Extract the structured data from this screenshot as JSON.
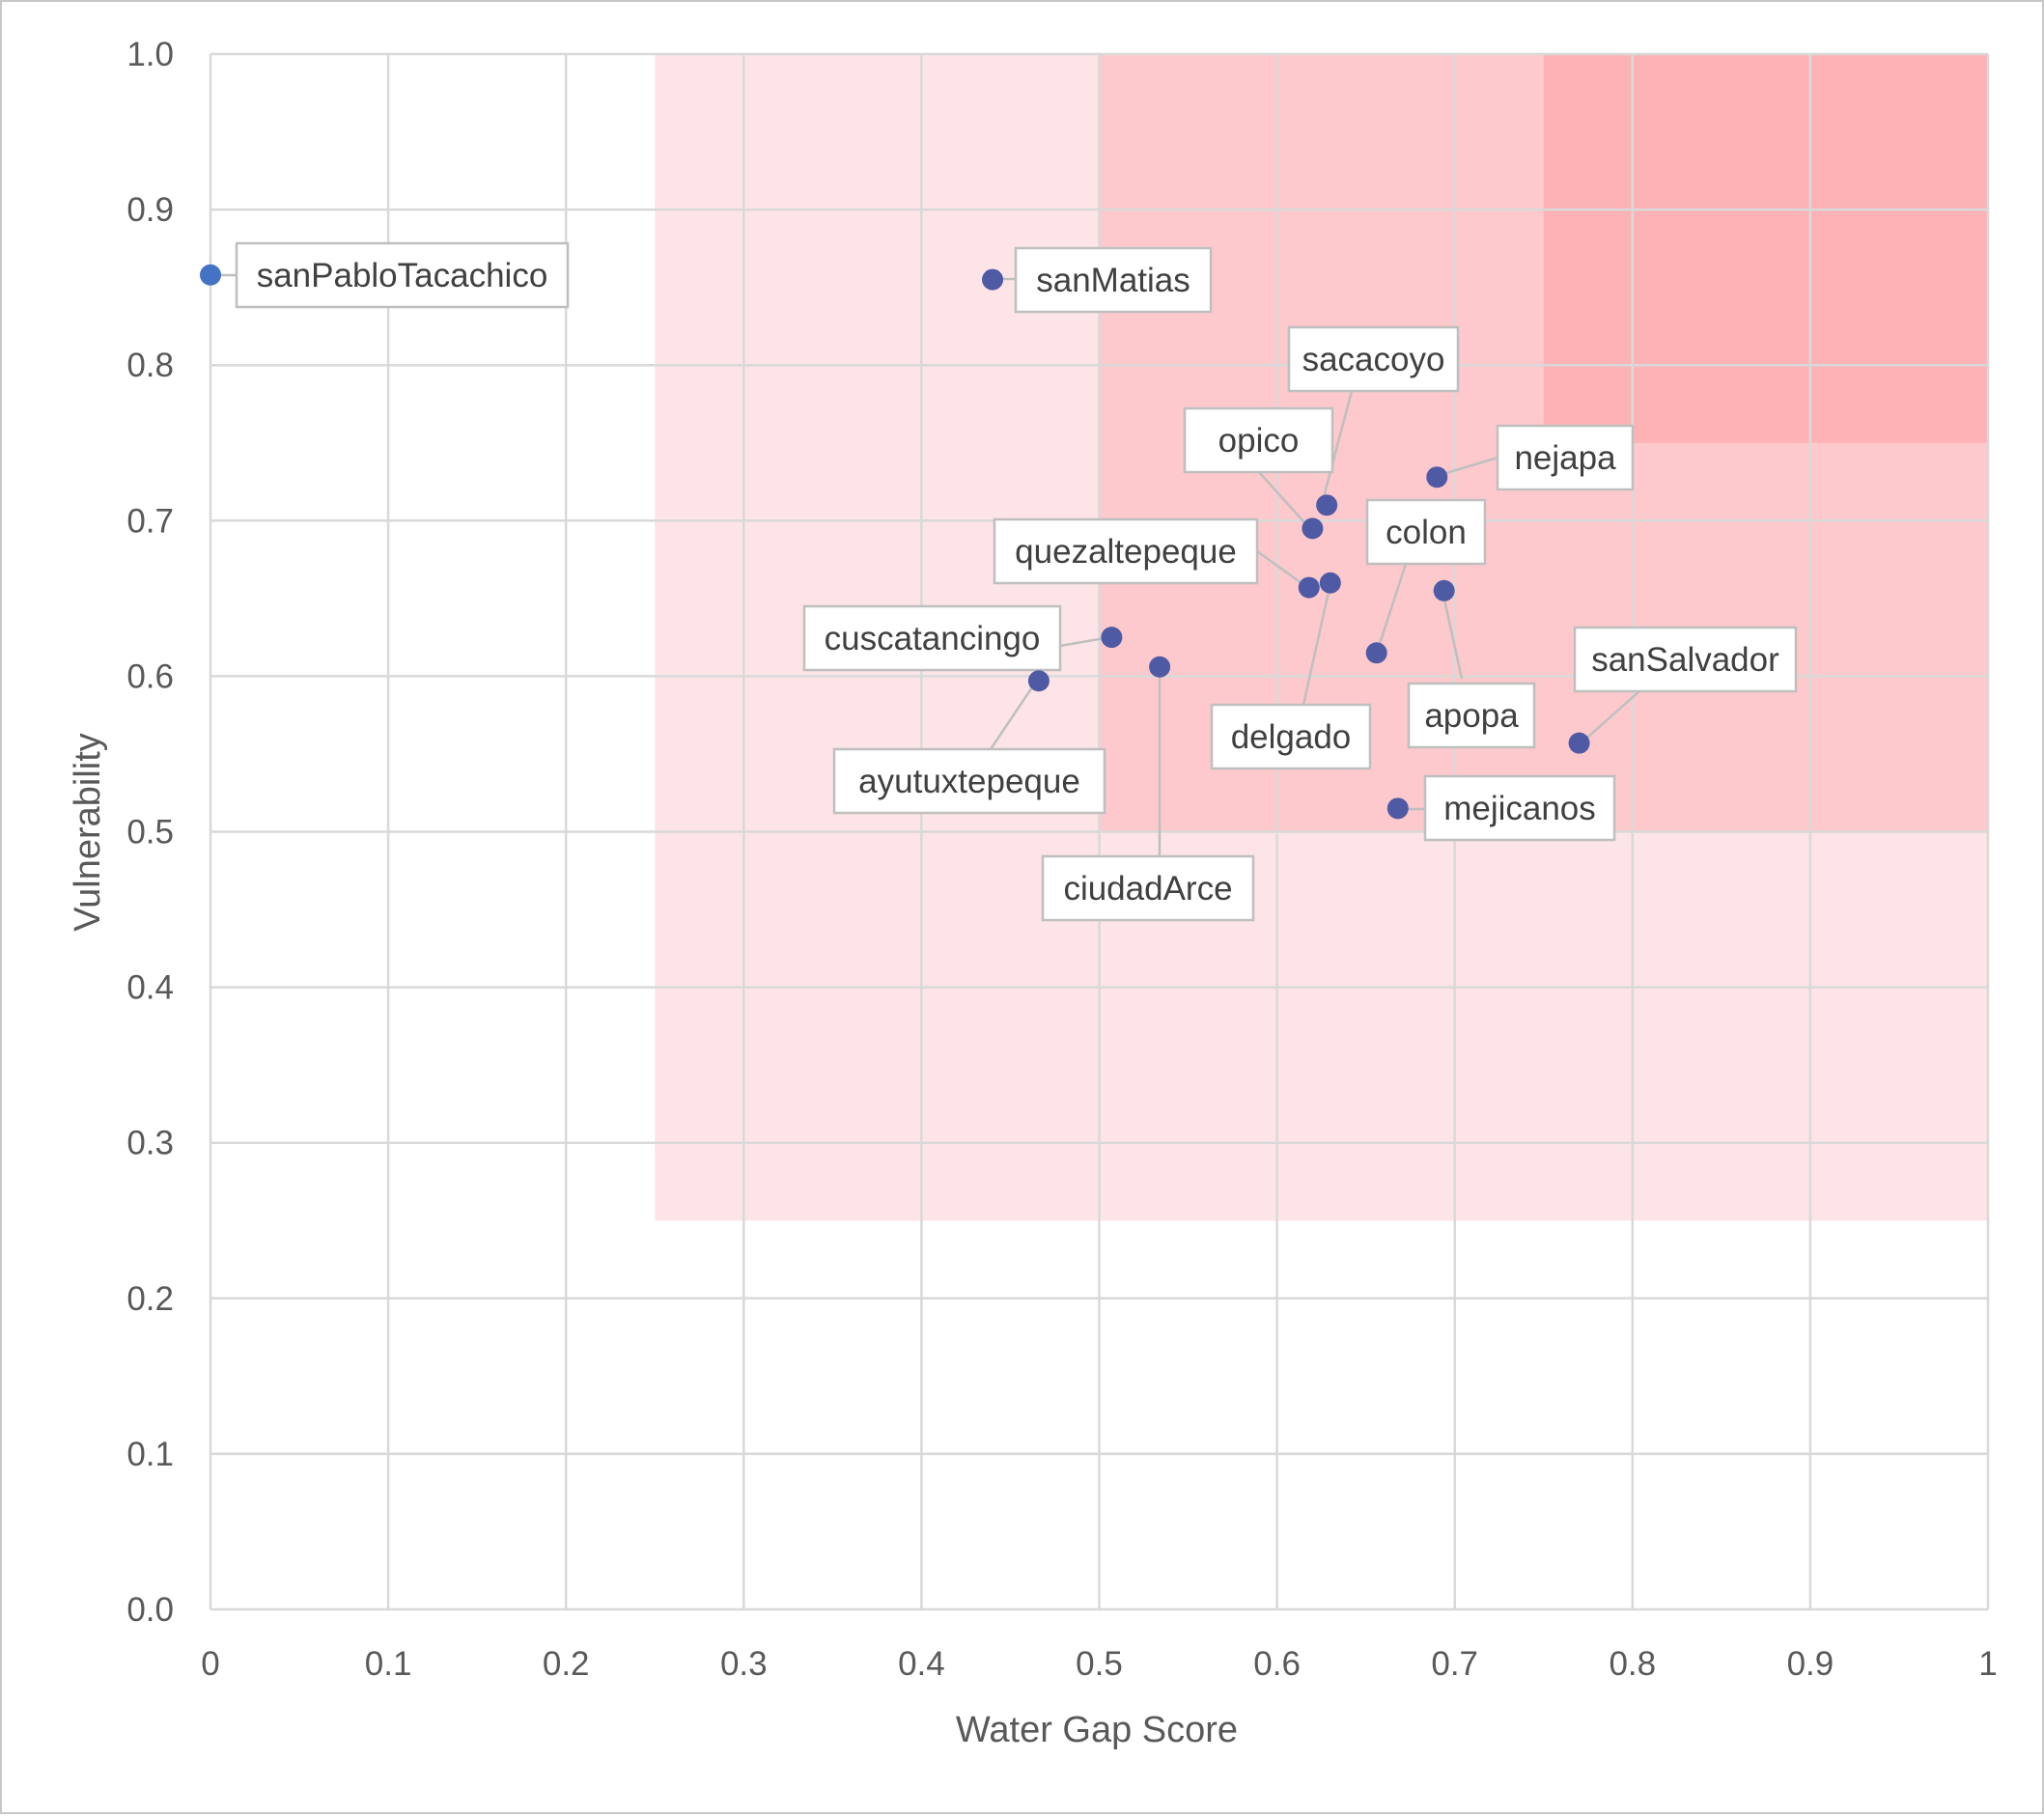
{
  "chart_data": {
    "type": "scatter",
    "xlabel": "Water Gap Score",
    "ylabel": "Vulnerability",
    "xlim": [
      0,
      1
    ],
    "ylim": [
      0,
      1
    ],
    "x_ticks": [
      "0",
      "0.1",
      "0.2",
      "0.3",
      "0.4",
      "0.5",
      "0.6",
      "0.7",
      "0.8",
      "0.9",
      "1"
    ],
    "y_ticks": [
      "0.0",
      "0.1",
      "0.2",
      "0.3",
      "0.4",
      "0.5",
      "0.6",
      "0.7",
      "0.8",
      "0.9",
      "1.0"
    ],
    "grid": true,
    "regions": [
      {
        "x0": 0.25,
        "y0": 0.25,
        "x1": 1.0,
        "y1": 1.0,
        "color": "#fde4e6"
      },
      {
        "x0": 0.5,
        "y0": 0.5,
        "x1": 1.0,
        "y1": 1.0,
        "color": "#fdc9cc"
      },
      {
        "x0": 0.75,
        "y0": 0.75,
        "x1": 1.0,
        "y1": 1.0,
        "color": "#fdb3b5"
      }
    ],
    "point_color": "#4f5aa5",
    "points": [
      {
        "label": "sanPabloTacachico",
        "x": 0.0,
        "y": 0.858,
        "color": "#4472c4"
      },
      {
        "label": "sanMatias",
        "x": 0.44,
        "y": 0.855
      },
      {
        "label": "sacacoyo",
        "x": 0.628,
        "y": 0.71
      },
      {
        "label": "opico",
        "x": 0.62,
        "y": 0.695
      },
      {
        "label": "nejapa",
        "x": 0.69,
        "y": 0.728
      },
      {
        "label": "quezaltepeque",
        "x": 0.618,
        "y": 0.657
      },
      {
        "label": "delgado",
        "x": 0.63,
        "y": 0.66
      },
      {
        "label": "colon",
        "x": 0.656,
        "y": 0.615
      },
      {
        "label": "apopa",
        "x": 0.694,
        "y": 0.655
      },
      {
        "label": "cuscatancingo",
        "x": 0.507,
        "y": 0.625
      },
      {
        "label": "ayutuxtepeque",
        "x": 0.466,
        "y": 0.597
      },
      {
        "label": "ciudadArce",
        "x": 0.534,
        "y": 0.606
      },
      {
        "label": "sanSalvador",
        "x": 0.77,
        "y": 0.557
      },
      {
        "label": "mejicanos",
        "x": 0.668,
        "y": 0.515
      }
    ]
  }
}
